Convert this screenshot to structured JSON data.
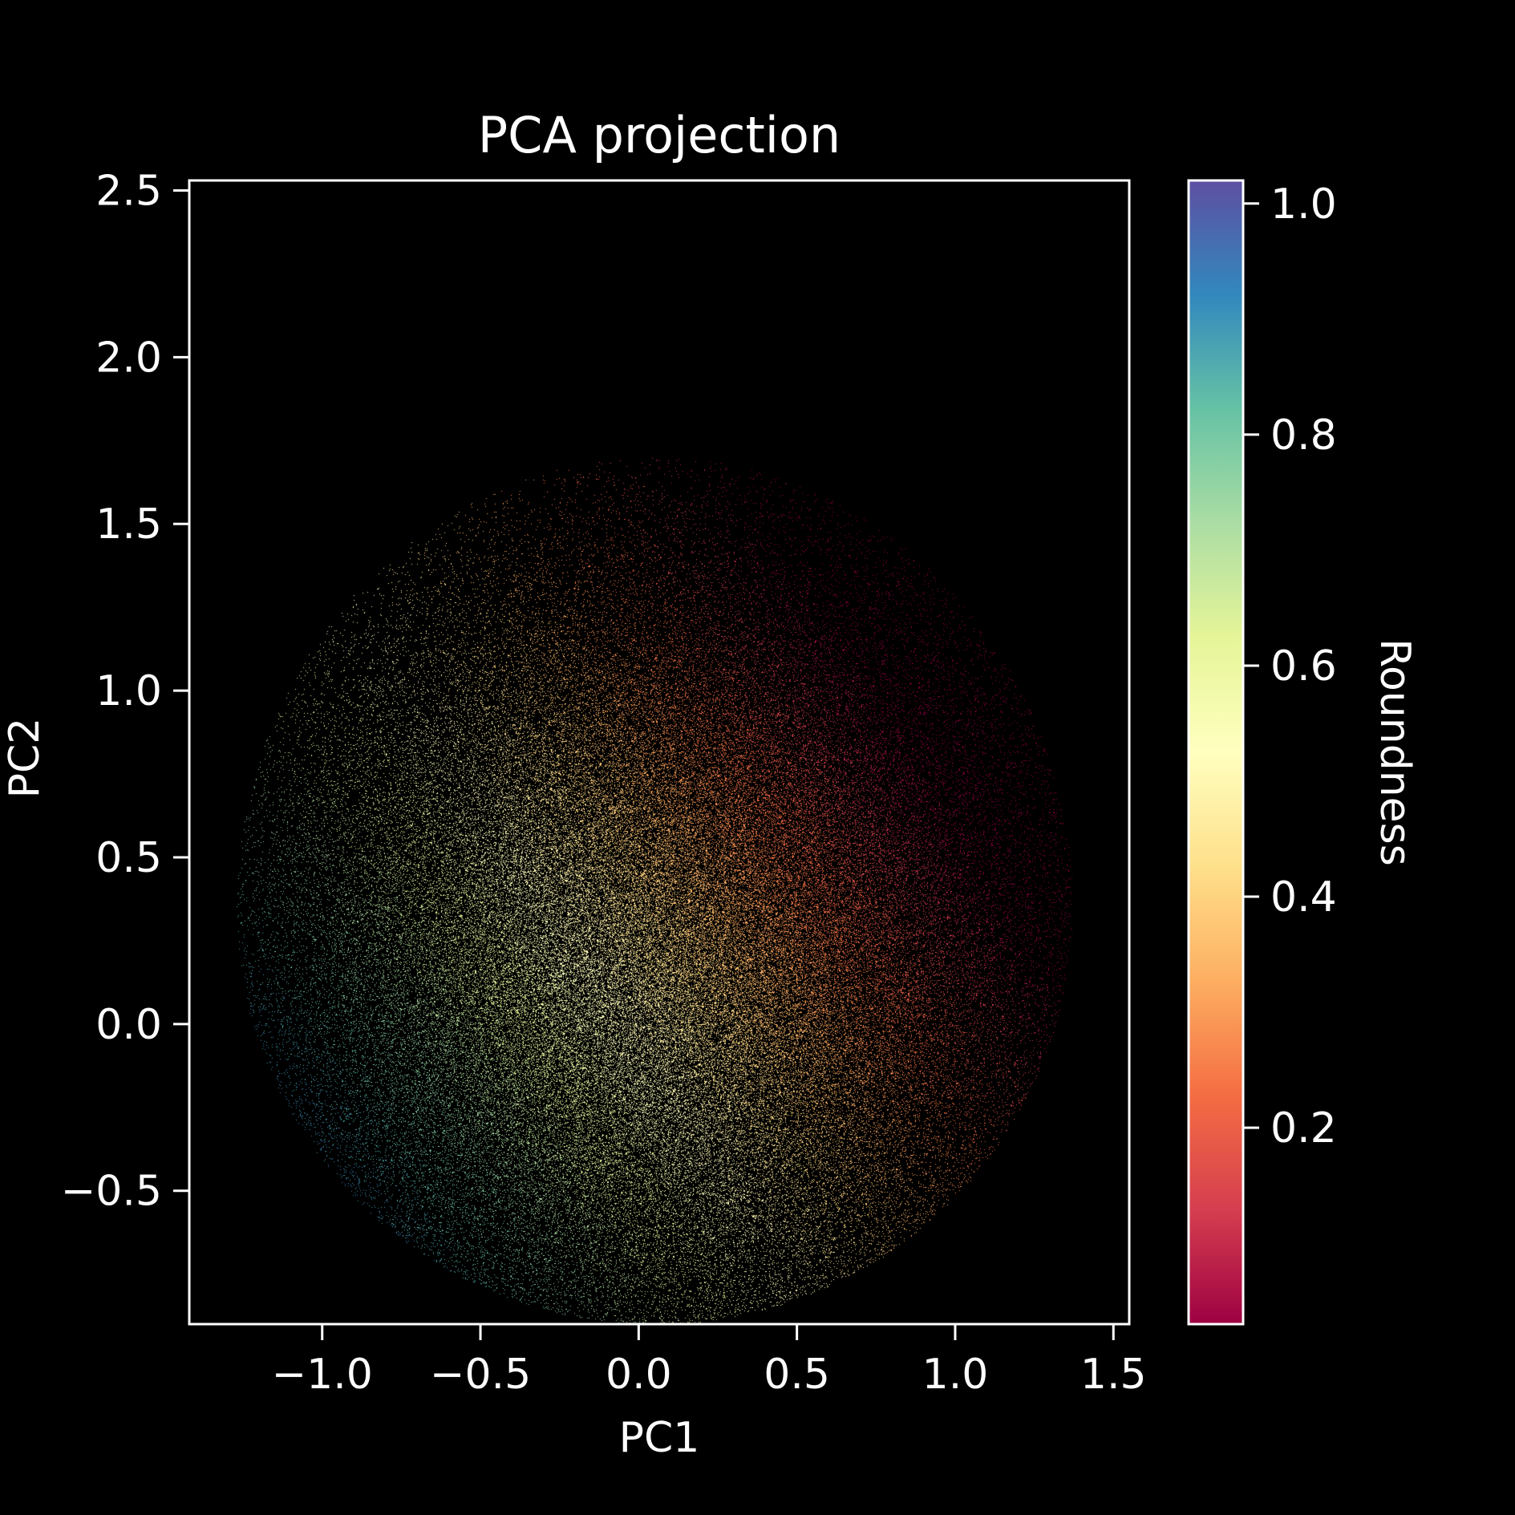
{
  "chart_data": {
    "type": "scatter",
    "title": "PCA projection",
    "xlabel": "PC1",
    "ylabel": "PC2",
    "xlim": [
      -1.42,
      1.55
    ],
    "ylim": [
      -0.9,
      2.53
    ],
    "x_ticks": [
      {
        "value": -1.0,
        "label": "−1.0"
      },
      {
        "value": -0.5,
        "label": "−0.5"
      },
      {
        "value": 0.0,
        "label": "0.0"
      },
      {
        "value": 0.5,
        "label": "0.5"
      },
      {
        "value": 1.0,
        "label": "1.0"
      },
      {
        "value": 1.5,
        "label": "1.5"
      }
    ],
    "y_ticks": [
      {
        "value": -0.5,
        "label": "−0.5"
      },
      {
        "value": 0.0,
        "label": "0.0"
      },
      {
        "value": 0.5,
        "label": "0.5"
      },
      {
        "value": 1.0,
        "label": "1.0"
      },
      {
        "value": 1.5,
        "label": "1.5"
      },
      {
        "value": 2.0,
        "label": "2.0"
      },
      {
        "value": 2.5,
        "label": "2.5"
      }
    ],
    "grid": false,
    "background": "#000000",
    "colorbar": {
      "label": "Roundness",
      "colormap": "Spectral",
      "range": [
        0.03,
        1.02
      ],
      "ticks": [
        {
          "value": 0.2,
          "label": "0.2"
        },
        {
          "value": 0.4,
          "label": "0.4"
        },
        {
          "value": 0.6,
          "label": "0.6"
        },
        {
          "value": 0.8,
          "label": "0.8"
        },
        {
          "value": 1.0,
          "label": "1.0"
        }
      ],
      "stops": [
        "#9e0142",
        "#d53e4f",
        "#f46d43",
        "#fdae61",
        "#fee08b",
        "#ffffbf",
        "#e6f598",
        "#abdda4",
        "#66c2a5",
        "#3288bd",
        "#5e4fa2"
      ]
    },
    "point_cloud": {
      "n_points": 120000,
      "center": [
        0.08,
        0.2
      ],
      "spread": [
        0.62,
        0.6
      ],
      "x_extent": [
        -1.35,
        1.42
      ],
      "y_extent": [
        -0.9,
        1.7
      ],
      "color_gradient": "roundness decreases from lower-left (~0.9) to right (~0.1)"
    }
  }
}
